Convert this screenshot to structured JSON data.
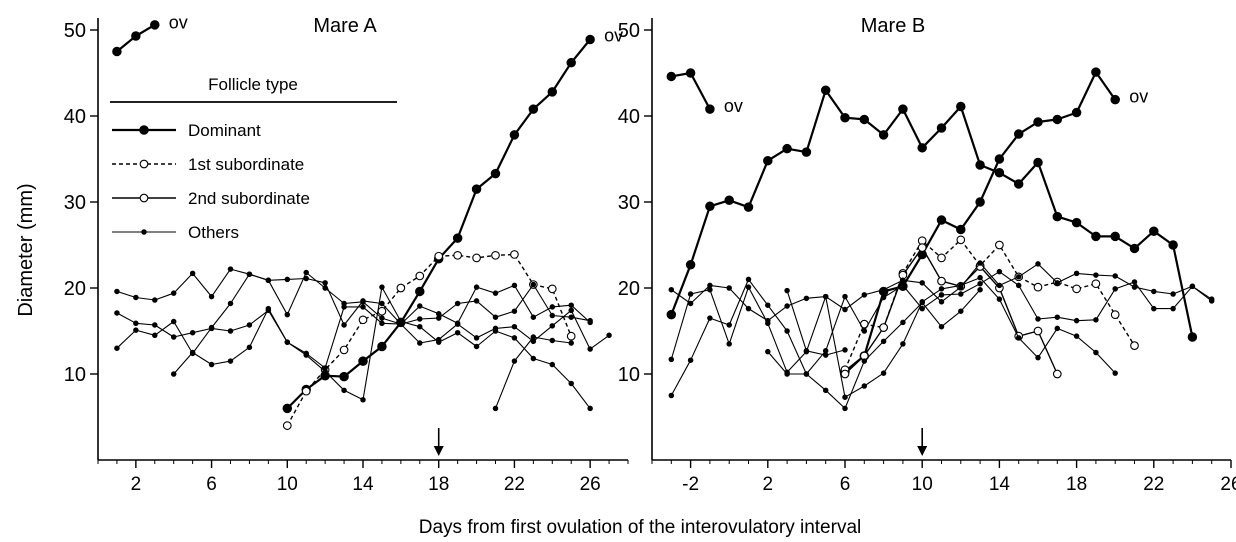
{
  "figure": {
    "ylabel": "Diameter (mm)",
    "xlabel": "Days from first ovulation of the interovulatory interval",
    "ov_label": "ov",
    "legend": {
      "title": "Follicle type",
      "entries": [
        {
          "label": "Dominant",
          "style": "dominant"
        },
        {
          "label": "1st subordinate",
          "style": "sub1"
        },
        {
          "label": "2nd subordinate",
          "style": "sub2"
        },
        {
          "label": "Others",
          "style": "other"
        }
      ]
    }
  },
  "chart_data": [
    {
      "type": "line",
      "title": "Mare A",
      "xlabel": "Days from first ovulation of the interovulatory interval",
      "ylabel": "Diameter (mm)",
      "xlim": [
        0,
        28
      ],
      "ylim": [
        0,
        50
      ],
      "xticks": [
        2,
        6,
        10,
        14,
        18,
        22,
        26
      ],
      "yticks": [
        10,
        20,
        30,
        40,
        50
      ],
      "arrow_day": 18,
      "ovulation_markers": [
        {
          "x": 3,
          "y": 50.5
        },
        {
          "x": 26,
          "y": 49
        }
      ],
      "series": [
        {
          "style": "dominant",
          "x": [
            1,
            2,
            3
          ],
          "y": [
            47.5,
            49.3,
            50.6
          ]
        },
        {
          "style": "dominant",
          "x": [
            10,
            11,
            12,
            13,
            14,
            15,
            16,
            17,
            18,
            19,
            20,
            21,
            22,
            23,
            24,
            25,
            26
          ],
          "y": [
            6.0,
            8.2,
            9.8,
            9.7,
            11.5,
            13.2,
            16.0,
            19.6,
            23.4,
            25.8,
            31.5,
            33.3,
            37.8,
            40.8,
            42.8,
            46.2,
            48.9
          ]
        },
        {
          "style": "sub1",
          "x": [
            10,
            11,
            12,
            13,
            14,
            15,
            16,
            17,
            18,
            19,
            20,
            21,
            22,
            23,
            24,
            25
          ],
          "y": [
            4.0,
            8.0,
            10.5,
            12.8,
            16.3,
            17.3,
            20.0,
            21.4,
            23.7,
            23.8,
            23.5,
            23.8,
            23.9,
            20.4,
            19.9,
            14.4
          ]
        },
        {
          "style": "other",
          "x": [
            1,
            2,
            3,
            4,
            5,
            6,
            7,
            8,
            9,
            10,
            11,
            12,
            13,
            14,
            15,
            16,
            17,
            18,
            19,
            20,
            21,
            22,
            23,
            24,
            25,
            26
          ],
          "y": [
            19.6,
            18.9,
            18.6,
            19.4,
            21.7,
            19.0,
            22.2,
            21.6,
            20.9,
            21.0,
            21.1,
            20.6,
            15.7,
            18.5,
            18.2,
            15.8,
            16.4,
            16.5,
            18.2,
            18.5,
            16.6,
            17.3,
            20.4,
            16.8,
            16.6,
            16.2
          ]
        },
        {
          "style": "other",
          "x": [
            1,
            2,
            3,
            4,
            5,
            6,
            7,
            8,
            9,
            10,
            11,
            12,
            13,
            14,
            15,
            16,
            17,
            18,
            19,
            20,
            21,
            22,
            23,
            24,
            25,
            26,
            27
          ],
          "y": [
            17.1,
            15.9,
            15.7,
            14.3,
            14.8,
            15.3,
            15.0,
            15.7,
            17.4,
            13.7,
            12.4,
            10.7,
            17.8,
            17.8,
            15.9,
            15.8,
            13.6,
            14.0,
            15.8,
            14.2,
            15.3,
            15.5,
            13.8,
            15.6,
            17.4,
            12.9,
            14.5
          ]
        },
        {
          "style": "other",
          "x": [
            1,
            2,
            3,
            4,
            5,
            6,
            7,
            8,
            9,
            10,
            11,
            12,
            13,
            14,
            15,
            16,
            17,
            18,
            19,
            20,
            21,
            22,
            23,
            24,
            25,
            26
          ],
          "y": [
            13.0,
            15.1,
            14.5,
            16.1,
            12.4,
            15.4,
            18.2,
            21.6,
            20.9,
            16.9,
            21.8,
            20.0,
            18.2,
            18.4,
            16.5,
            15.8,
            17.9,
            17.0,
            15.9,
            20.1,
            19.4,
            20.3,
            16.6,
            17.8,
            18.0,
            16.0
          ]
        },
        {
          "style": "other",
          "x": [
            4,
            5,
            6,
            7,
            8,
            9,
            10,
            11,
            12,
            13,
            14,
            15,
            16,
            17,
            18,
            19,
            20,
            21,
            22,
            23,
            24,
            25,
            26
          ],
          "y": [
            10.0,
            12.5,
            11.1,
            11.5,
            13.1,
            17.6,
            13.7,
            12.2,
            10.3,
            8.1,
            7.0,
            20.1,
            16.1,
            15.5,
            13.7,
            14.8,
            13.2,
            15.0,
            14.2,
            11.8,
            11.1,
            8.9,
            6.0
          ]
        },
        {
          "style": "other",
          "x": [
            21,
            22,
            23,
            24,
            25
          ],
          "y": [
            6.0,
            11.5,
            14.3,
            13.9,
            13.6
          ]
        }
      ]
    },
    {
      "type": "line",
      "title": "Mare B",
      "xlabel": "Days from first ovulation of the interovulatory interval",
      "ylabel": "Diameter (mm)",
      "xlim": [
        -4,
        26
      ],
      "ylim": [
        0,
        50
      ],
      "xticks": [
        -2,
        2,
        6,
        10,
        14,
        18,
        22,
        26
      ],
      "yticks": [
        10,
        20,
        30,
        40,
        50
      ],
      "arrow_day": 10,
      "ovulation_markers": [
        {
          "x": -1,
          "y": 40.8
        },
        {
          "x": 20,
          "y": 41.9
        }
      ],
      "series": [
        {
          "style": "dominant",
          "x": [
            -3,
            -2,
            -1
          ],
          "y": [
            44.6,
            45.0,
            40.8
          ]
        },
        {
          "style": "dominant",
          "x": [
            -3,
            -2,
            -1,
            0,
            1,
            2,
            3,
            4,
            5,
            6,
            7,
            8,
            9,
            10,
            11,
            12,
            13,
            14,
            15,
            16,
            17,
            18,
            19,
            20,
            21,
            22,
            23,
            24
          ],
          "y": [
            16.9,
            22.7,
            29.5,
            30.2,
            29.4,
            34.8,
            36.2,
            35.8,
            43.0,
            39.8,
            39.6,
            37.8,
            40.8,
            36.3,
            38.6,
            41.1,
            34.3,
            33.4,
            32.1,
            34.6,
            28.3,
            27.6,
            26.0,
            26.0,
            24.6,
            26.6,
            25.0,
            14.3
          ]
        },
        {
          "style": "dominant",
          "x": [
            6,
            7,
            8,
            9,
            10,
            11,
            12,
            13,
            14,
            15,
            16,
            17,
            18,
            19,
            20
          ],
          "y": [
            10.3,
            12.1,
            19.6,
            20.2,
            23.9,
            27.9,
            26.8,
            30.0,
            35.0,
            37.9,
            39.3,
            39.6,
            40.4,
            45.1,
            41.9
          ]
        },
        {
          "style": "sub1",
          "x": [
            6,
            7,
            8,
            9,
            10,
            11,
            12,
            13,
            14,
            15,
            16,
            17,
            18,
            19,
            20,
            21
          ],
          "y": [
            10.5,
            15.8,
            15.4,
            21.7,
            25.5,
            23.5,
            25.6,
            22.6,
            25.0,
            21.3,
            20.1,
            20.7,
            19.9,
            20.5,
            16.9,
            13.3
          ]
        },
        {
          "style": "sub2",
          "x": [
            6,
            7,
            8,
            9,
            10,
            11,
            12,
            13,
            14,
            15,
            16,
            17
          ],
          "y": [
            10.0,
            12.1,
            15.4,
            21.5,
            24.7,
            20.8,
            20.2,
            22.5,
            20.0,
            14.4,
            15.0,
            10.0
          ]
        },
        {
          "style": "other",
          "x": [
            -3,
            -2,
            -1,
            0,
            1,
            2,
            3,
            4,
            5,
            6,
            7,
            8,
            9,
            10,
            11,
            12,
            13,
            14,
            15,
            16,
            17,
            18,
            19,
            20,
            21,
            22,
            23,
            24,
            25
          ],
          "y": [
            19.8,
            18.2,
            20.3,
            20.0,
            17.6,
            16.2,
            17.9,
            18.8,
            19.0,
            17.5,
            19.2,
            19.8,
            20.9,
            20.6,
            18.4,
            20.1,
            22.9,
            20.3,
            21.3,
            22.8,
            20.6,
            21.7,
            21.5,
            21.4,
            20.1,
            19.6,
            19.3,
            20.2,
            18.5
          ]
        },
        {
          "style": "other",
          "x": [
            -3,
            -2,
            -1,
            0,
            1,
            2,
            3,
            4,
            5,
            6,
            7,
            8,
            9,
            10,
            11,
            12,
            13,
            14,
            15,
            16,
            17,
            18,
            19,
            20,
            21,
            22,
            23,
            24,
            25
          ],
          "y": [
            7.5,
            11.6,
            16.5,
            15.7,
            21.0,
            18.0,
            15.0,
            10.0,
            12.7,
            19.0,
            15.0,
            18.9,
            20.3,
            17.6,
            19.2,
            19.3,
            20.5,
            21.9,
            20.3,
            16.4,
            16.6,
            16.2,
            16.3,
            19.9,
            20.7,
            17.6,
            17.6,
            20.2,
            18.7
          ]
        },
        {
          "style": "other",
          "x": [
            -3,
            -2,
            -1,
            0,
            1,
            2,
            3,
            4,
            5,
            6,
            7,
            8,
            9,
            10,
            11,
            12,
            13,
            14,
            15,
            16,
            17,
            18,
            19,
            20
          ],
          "y": [
            11.7,
            19.3,
            19.8,
            13.5,
            20.1,
            15.9,
            10.2,
            12.6,
            19.0,
            7.3,
            8.6,
            10.1,
            13.5,
            18.4,
            19.9,
            20.3,
            21.2,
            18.7,
            14.2,
            11.9,
            15.3,
            14.4,
            12.5,
            10.1
          ]
        },
        {
          "style": "other",
          "x": [
            2,
            3,
            4,
            5,
            6,
            7,
            8,
            9,
            10,
            11,
            12,
            13
          ],
          "y": [
            12.6,
            10.0,
            10.0,
            8.1,
            6.0,
            11.5,
            13.8,
            16.0,
            18.3,
            15.5,
            17.3,
            19.8
          ]
        },
        {
          "style": "other",
          "x": [
            3,
            4,
            5,
            6
          ],
          "y": [
            19.7,
            12.7,
            12.2,
            12.8
          ]
        }
      ]
    }
  ]
}
